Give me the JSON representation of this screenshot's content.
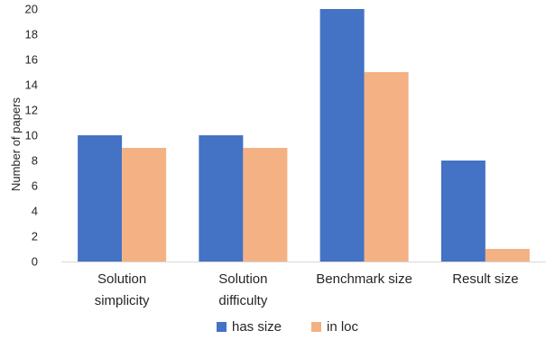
{
  "chart_data": {
    "type": "bar",
    "title": "",
    "xlabel": "",
    "ylabel": "Number of papers",
    "ylim": [
      0,
      20
    ],
    "yticks": [
      0,
      2,
      4,
      6,
      8,
      10,
      12,
      14,
      16,
      18,
      20
    ],
    "grid": false,
    "legend_position": "bottom",
    "categories": [
      [
        "Solution",
        "simplicity"
      ],
      [
        "Solution",
        "difficulty"
      ],
      [
        "Benchmark size"
      ],
      [
        "Result size"
      ]
    ],
    "series": [
      {
        "name": "has size",
        "color": "#4472C4",
        "values": [
          10,
          10,
          20,
          8
        ]
      },
      {
        "name": "in loc",
        "color": "#F4B183",
        "values": [
          9,
          9,
          15,
          1
        ]
      }
    ]
  }
}
